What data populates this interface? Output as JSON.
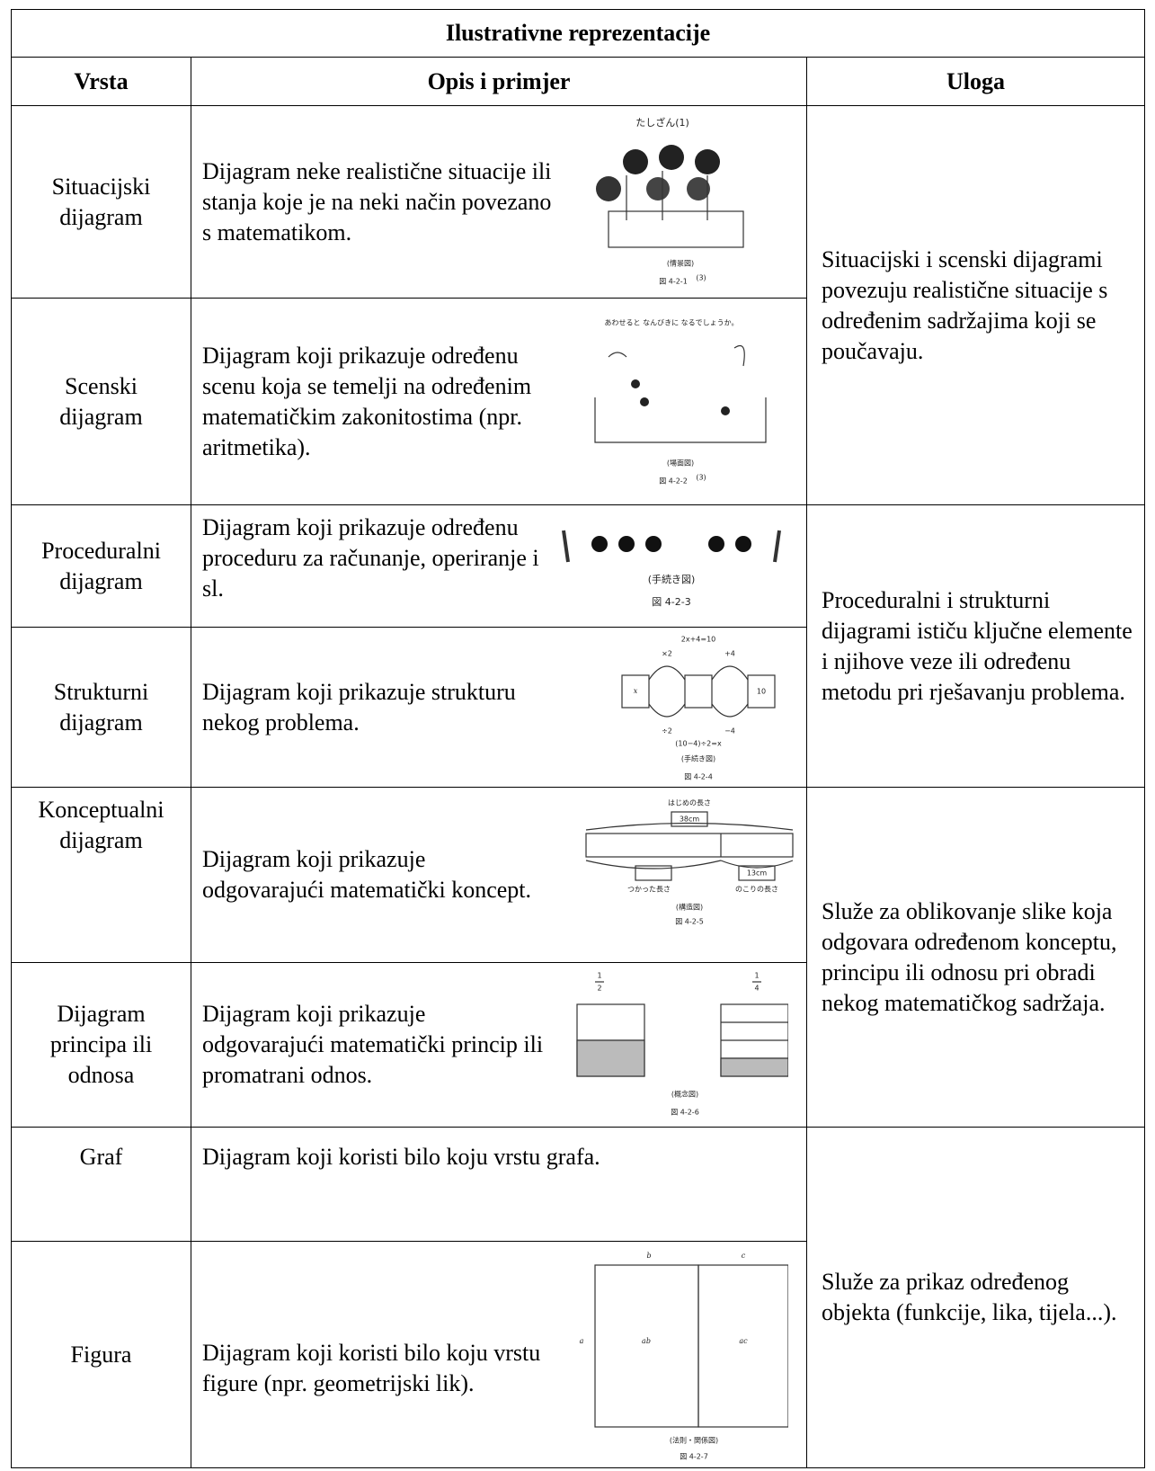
{
  "header": {
    "title": "Ilustrativne reprezentacije"
  },
  "table": {
    "columns": [
      "Vrsta",
      "Opis i primjer",
      "Uloga"
    ],
    "rows": [
      {
        "type": "Situacijski dijagram",
        "description": "Dijagram neke realistične situacije ili stanja koje je na neki način povezano s matematikom.",
        "figure": {
          "heading": "たしざん(1)",
          "caption": "(情景図)",
          "label": "図 4-2-1",
          "ref": "(3)"
        }
      },
      {
        "type": "Scenski dijagram",
        "description": "Dijagram koji prikazuje određenu scenu koja se temelji na određenim matematičkim zakonitostima (npr. aritmetika).",
        "figure": {
          "heading": "あわせると なんびきに なるでしょうか。",
          "caption": "(場面図)",
          "label": "図 4-2-2",
          "ref": "(3)"
        }
      },
      {
        "type": "Proceduralni dijagram",
        "description": "Dijagram koji prikazuje određenu proceduru za računanje, operiranje i sl.",
        "figure": {
          "caption": "(手続き図)",
          "label": "図 4-2-3"
        }
      },
      {
        "type": "Strukturni dijagram",
        "description": "Dijagram koji prikazuje strukturu nekog problema.",
        "figure": {
          "equation": "2x+4=10",
          "top_left": "×2",
          "top_right": "+4",
          "left_box": "x",
          "right_box": "10",
          "bottom_left": "÷2",
          "bottom_right": "−4",
          "solution": "(10−4)÷2=x",
          "caption": "(手続き図)",
          "label": "図 4-2-4"
        }
      },
      {
        "type": "Konceptualni dijagram",
        "description": "Dijagram koji prikazuje odgovarajući matematički koncept.",
        "figure": {
          "heading": "はじめの長さ",
          "total": "38cm",
          "rest": "13cm",
          "used_label": "つかった長さ",
          "rest_label": "のこりの長さ",
          "caption": "(構造図)",
          "label": "図 4-2-5"
        }
      },
      {
        "type": "Dijagram principa ili odnosa",
        "description": "Dijagram koji prikazuje odgovarajući matematički princip ili promatrani odnos.",
        "figure": {
          "left_numerator": "1",
          "left_denominator": "2",
          "right_numerator": "1",
          "right_denominator": "4",
          "caption": "(概念図)",
          "label": "図 4-2-6"
        }
      },
      {
        "type": "Graf",
        "description": "Dijagram koji koristi bilo koju vrstu grafa."
      },
      {
        "type": "Figura",
        "description": "Dijagram koji koristi bilo koju vrstu figure (npr. geometrijski lik).",
        "figure": {
          "top_left": "b",
          "top_right": "c",
          "side": "a",
          "left_area": "ab",
          "right_area": "ac",
          "caption": "(法則・関係図)",
          "label": "図 4-2-7"
        }
      }
    ],
    "roles": [
      "Situacijski i scenski dijagrami povezuju realistične situacije s određenim sadržajima koji se poučavaju.",
      "Proceduralni i strukturni dijagrami ističu ključne elemente i njihove veze ili određenu metodu pri rješavanju problema.",
      "Služe za oblikovanje slike koja odgovara određenom konceptu, principu ili odnosu pri obradi nekog matematičkog sadržaja.",
      "Služe za prikaz određenog objekta (funkcije, lika, tijela...)."
    ]
  }
}
